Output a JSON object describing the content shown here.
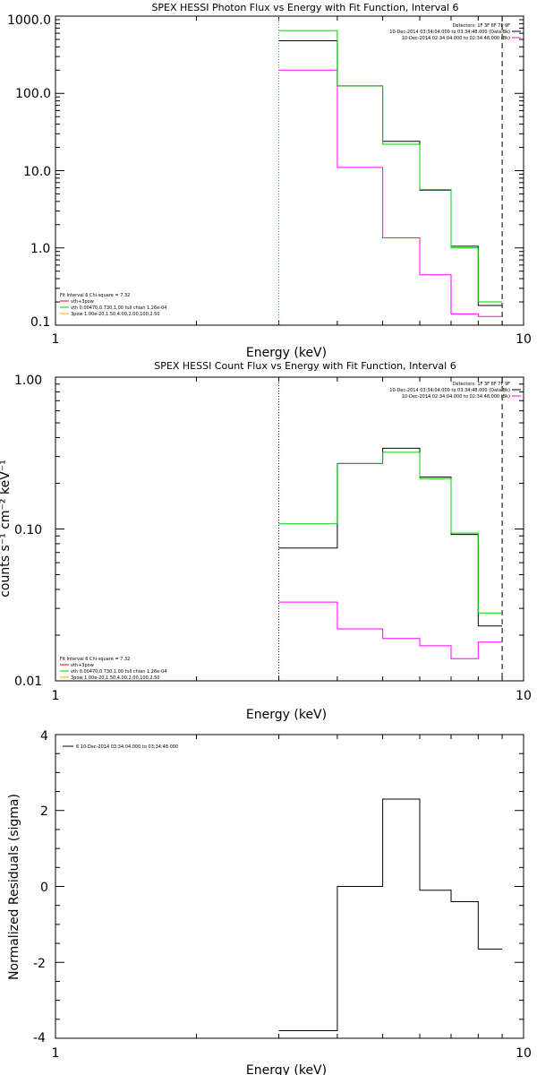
{
  "chart_data": [
    {
      "type": "line",
      "title": "SPEX HESSI Photon Flux vs Energy with Fit Function, Interval 6",
      "xlabel": "Energy (keV)",
      "ylabel": "",
      "xscale": "log",
      "yscale": "log",
      "xlim": [
        1,
        10
      ],
      "ylim": [
        0.1,
        1000
      ],
      "xtick_labels": [
        "1",
        "10"
      ],
      "ytick_labels": [
        "0.1",
        "1.0",
        "10.0",
        "100.0",
        "1000.0"
      ],
      "ytick_values": [
        0.1,
        1,
        10,
        100,
        1000
      ],
      "bin_edges": [
        3,
        4,
        5,
        6,
        7,
        8,
        9
      ],
      "vlines": [
        {
          "x": 3,
          "style": "dotted",
          "color": "#00cc00"
        },
        {
          "x": 9,
          "style": "dashed",
          "color": "#000000"
        }
      ],
      "series": [
        {
          "color": "#000000",
          "values": [
            480,
            125,
            24,
            5.6,
            1.05,
            0.18
          ]
        },
        {
          "color": "#ff00ff",
          "values": [
            200,
            11,
            1.35,
            0.45,
            0.14,
            0.13
          ]
        },
        {
          "color": "#00cc00",
          "values": [
            650,
            125,
            22,
            5.7,
            1.0,
            0.2
          ]
        }
      ],
      "info_lines": [
        {
          "text": "Detectors: 1F 3F 6F 7F 9F",
          "color": "#000000"
        },
        {
          "text": "10-Dec-2014 03:34:04.000 to 03:34:48.000 (Data-Bk)",
          "color": "#000000"
        },
        {
          "text": "10-Dec-2014 02:34:04.000 to 02:34:48.000 (Bk)",
          "color": "#ff00ff"
        }
      ],
      "legend_lines": [
        {
          "text": "Fit Interval 6   Chi-square = 7.32",
          "color": "#000000"
        },
        {
          "text": "vth+3pow",
          "color": "#ff0000"
        },
        {
          "text": "vth 0.00470,0.730,1.00  full chian 1.26e-04",
          "color": "#00cc00"
        },
        {
          "text": "3pow 1.00e-20,1.50,4.00,2.00,100,2.50",
          "color": "#ffa500"
        }
      ]
    },
    {
      "type": "line",
      "title": "SPEX HESSI Count Flux vs Energy with Fit Function, Interval 6",
      "xlabel": "Energy (keV)",
      "ylabel": "counts s⁻¹ cm⁻² keV⁻¹",
      "xscale": "log",
      "yscale": "log",
      "xlim": [
        1,
        10
      ],
      "ylim": [
        0.01,
        1
      ],
      "xtick_labels": [
        "1",
        "10"
      ],
      "ytick_labels": [
        "0.01",
        "0.10",
        "1.00"
      ],
      "ytick_values": [
        0.01,
        0.1,
        1
      ],
      "bin_edges": [
        3,
        4,
        5,
        6,
        7,
        8,
        9
      ],
      "vlines": [
        {
          "x": 3,
          "style": "dotted",
          "color": "#000000"
        },
        {
          "x": 9,
          "style": "dashed",
          "color": "#000000"
        }
      ],
      "series": [
        {
          "color": "#000000",
          "values": [
            0.075,
            0.27,
            0.34,
            0.22,
            0.092,
            0.023
          ]
        },
        {
          "color": "#ff00ff",
          "values": [
            0.033,
            0.022,
            0.019,
            0.017,
            0.014,
            0.018
          ]
        },
        {
          "color": "#00cc00",
          "values": [
            0.108,
            0.27,
            0.32,
            0.215,
            0.094,
            0.028
          ]
        }
      ],
      "info_lines": [
        {
          "text": "Detectors: 1F 3F 6F 7F 9F",
          "color": "#000000"
        },
        {
          "text": "10-Dec-2014 03:34:04.000 to 03:34:48.000 (Data-Bk)",
          "color": "#000000"
        },
        {
          "text": "10-Dec-2014 02:34:04.000 to 02:34:48.000 (Bk)",
          "color": "#ff00ff"
        }
      ],
      "legend_lines": [
        {
          "text": "Fit Interval 6   Chi-square = 7.32",
          "color": "#000000"
        },
        {
          "text": "vth+3pow",
          "color": "#ff0000"
        },
        {
          "text": "vth 0.00470,0.730,1.00  full chian 1.26e-04",
          "color": "#00cc00"
        },
        {
          "text": "3pow 1.00e-20,1.50,4.00,2.00,100,2.50",
          "color": "#ffa500"
        }
      ]
    },
    {
      "type": "line",
      "title": "",
      "xlabel": "Energy (keV)",
      "ylabel": "Normalized Residuals (sigma)",
      "xscale": "log",
      "yscale": "linear",
      "xlim": [
        1,
        10
      ],
      "ylim": [
        -4,
        4
      ],
      "xtick_labels": [
        "1",
        "10"
      ],
      "ytick_labels": [
        "-4",
        "-2",
        "0",
        "2",
        "4"
      ],
      "ytick_values": [
        -4,
        -2,
        0,
        2,
        4
      ],
      "bin_edges": [
        3,
        4,
        5,
        6,
        7,
        8,
        9
      ],
      "vlines": [],
      "series": [
        {
          "color": "#000000",
          "values": [
            -3.8,
            0.0,
            2.3,
            -0.1,
            -0.4,
            -1.65
          ]
        }
      ],
      "info_lines": [],
      "legend_lines": [
        {
          "text": "6  10-Dec-2014 03:34:04.000 to 03:34:48.000",
          "color": "#000000"
        }
      ]
    }
  ]
}
